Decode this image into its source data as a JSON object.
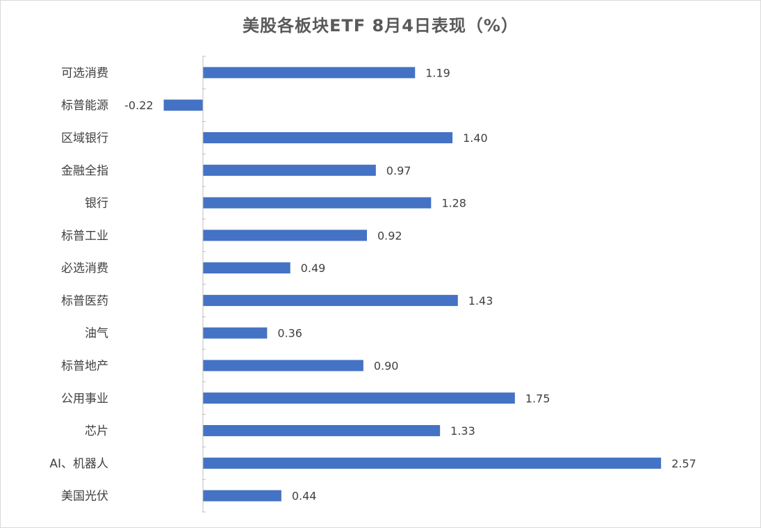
{
  "chart_data": {
    "type": "bar",
    "orientation": "horizontal",
    "title": "美股各板块ETF  8月4日表现（%）",
    "categories": [
      "可选消费",
      "标普能源",
      "区域银行",
      "金融全指",
      "银行",
      "标普工业",
      "必选消费",
      "标普医药",
      "油气",
      "标普地产",
      "公用事业",
      "芯片",
      "AI、机器人",
      "美国光伏"
    ],
    "values": [
      1.19,
      -0.22,
      1.4,
      0.97,
      1.28,
      0.92,
      0.49,
      1.43,
      0.36,
      0.9,
      1.75,
      1.33,
      2.57,
      0.44
    ],
    "value_labels": [
      "1.19",
      "-0.22",
      "1.40",
      "0.97",
      "1.28",
      "0.92",
      "0.49",
      "1.43",
      "0.36",
      "0.90",
      "1.75",
      "1.33",
      "2.57",
      "0.44"
    ],
    "xlabel": "",
    "ylabel": "",
    "grid": false,
    "legend": "none",
    "bar_color": "#4472c4"
  }
}
